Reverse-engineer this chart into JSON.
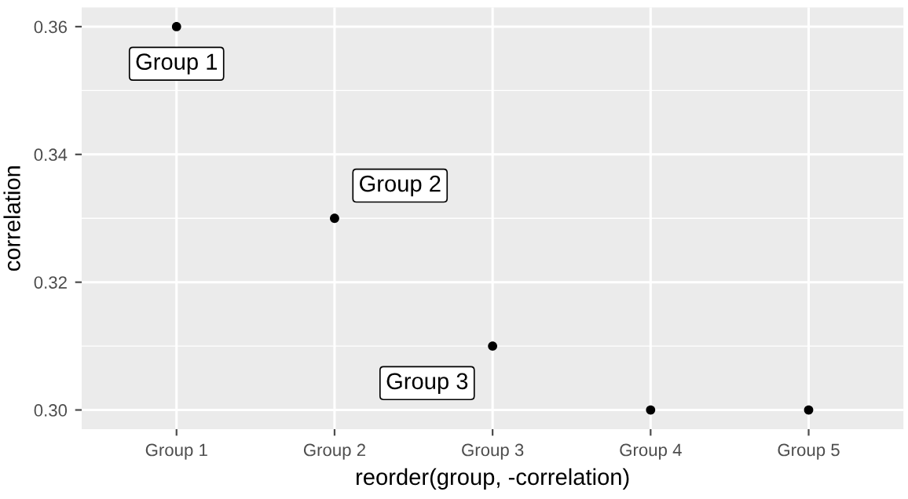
{
  "chart_data": {
    "type": "scatter",
    "xlabel": "reorder(group, -correlation)",
    "ylabel": "correlation",
    "categories": [
      "Group 1",
      "Group 2",
      "Group 3",
      "Group 4",
      "Group 5"
    ],
    "series": [
      {
        "color": "#000000",
        "values": [
          0.36,
          0.33,
          0.31,
          0.3,
          0.3
        ]
      }
    ],
    "ylim": [
      0.297,
      0.363
    ],
    "yticks": [
      {
        "value": 0.3,
        "label": "0.30"
      },
      {
        "value": 0.32,
        "label": "0.32"
      },
      {
        "value": 0.34,
        "label": "0.34"
      },
      {
        "value": 0.36,
        "label": "0.36"
      }
    ],
    "annotations": [
      {
        "text": "Group 1",
        "x": "Group 1",
        "y": 0.36
      },
      {
        "text": "Group 2",
        "x": "Group 2",
        "y": 0.33
      },
      {
        "text": "Group 3",
        "x": "Group 3",
        "y": 0.31
      }
    ],
    "grid": true,
    "marker": "circle",
    "legend": false
  }
}
